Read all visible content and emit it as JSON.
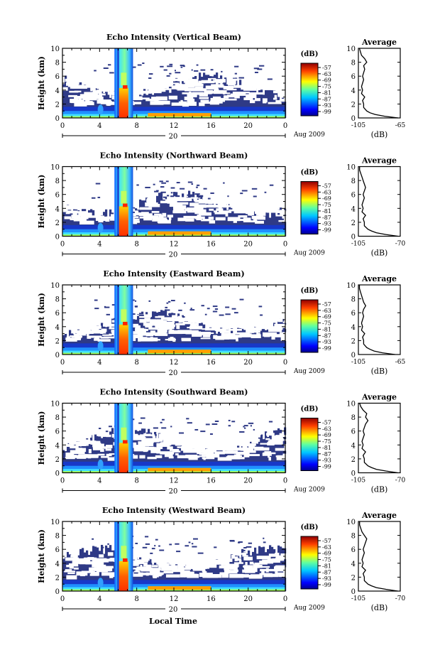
{
  "figure": {
    "xlabel": "Local Time",
    "ylabel": "Height (km)",
    "date_day": "20",
    "date_month_year": "Aug 2009",
    "colorbar_unit": "(dB)",
    "colorbar_ticks": [
      "-57",
      "-63",
      "-69",
      "-75",
      "-81",
      "-87",
      "-93",
      "-99"
    ],
    "colors": {
      "dark_blue": "#2f3a86",
      "colormap": [
        "#00008f",
        "#0040ff",
        "#00c0ff",
        "#40ffbf",
        "#c0ff40",
        "#ffc000",
        "#ff4000",
        "#800000"
      ]
    }
  },
  "chart_data": [
    {
      "type": "heatmap",
      "title": "Echo Intensity (Vertical Beam)",
      "x_ticks": [
        "0",
        "4",
        "8",
        "12",
        "16",
        "20",
        "0"
      ],
      "y_ticks": [
        "0",
        "2",
        "4",
        "6",
        "8",
        "10"
      ],
      "xlim": [
        0,
        24
      ],
      "ylim": [
        0,
        10
      ],
      "colorbar": {
        "unit": "(dB)",
        "range": [
          -99,
          -57
        ]
      },
      "average_profile": {
        "title": "Average",
        "xlabel": "(dB)",
        "x_ticks": [
          "-105",
          "-65"
        ],
        "xlim": [
          -105,
          -65
        ],
        "y_ticks": [
          "0",
          "2",
          "4",
          "6",
          "8",
          "10"
        ],
        "height": [
          0,
          0.25,
          0.5,
          0.75,
          1,
          1.5,
          2,
          2.5,
          3,
          3.5,
          4,
          4.5,
          5,
          5.5,
          6,
          6.5,
          7,
          7.5,
          8,
          8.5,
          9,
          9.5,
          10
        ],
        "db": [
          -67,
          -80,
          -89,
          -94,
          -97,
          -100,
          -100,
          -101,
          -99,
          -102,
          -101,
          -102,
          -101,
          -100,
          -101,
          -100,
          -99,
          -100,
          -97,
          -99,
          -102,
          -103,
          -104
        ]
      }
    },
    {
      "type": "heatmap",
      "title": "Echo Intensity (Northward Beam)",
      "x_ticks": [
        "0",
        "4",
        "8",
        "12",
        "16",
        "20",
        "0"
      ],
      "y_ticks": [
        "0",
        "2",
        "4",
        "6",
        "8",
        "10"
      ],
      "xlim": [
        0,
        24
      ],
      "ylim": [
        0,
        10
      ],
      "colorbar": {
        "unit": "(dB)",
        "range": [
          -99,
          -57
        ]
      },
      "average_profile": {
        "title": "Average",
        "xlabel": "(dB)",
        "x_ticks": [
          "-105",
          "-70"
        ],
        "xlim": [
          -105,
          -70
        ],
        "y_ticks": [
          "0",
          "2",
          "4",
          "6",
          "8",
          "10"
        ],
        "height": [
          0,
          0.25,
          0.5,
          0.75,
          1,
          1.5,
          2,
          2.5,
          3,
          3.5,
          4,
          4.5,
          5,
          5.5,
          6,
          6.5,
          7,
          7.5,
          8,
          8.5,
          9,
          9.5,
          10
        ],
        "db": [
          -72,
          -82,
          -90,
          -94,
          -97,
          -100,
          -100,
          -101,
          -99,
          -102,
          -101,
          -102,
          -101,
          -100,
          -101,
          -100,
          -99,
          -100,
          -101,
          -102,
          -103,
          -104,
          -104
        ]
      }
    },
    {
      "type": "heatmap",
      "title": "Echo Intensity (Eastward Beam)",
      "x_ticks": [
        "0",
        "4",
        "8",
        "12",
        "16",
        "20",
        "0"
      ],
      "y_ticks": [
        "0",
        "2",
        "4",
        "6",
        "8",
        "10"
      ],
      "xlim": [
        0,
        24
      ],
      "ylim": [
        0,
        10
      ],
      "colorbar": {
        "unit": "(dB)",
        "range": [
          -99,
          -57
        ]
      },
      "average_profile": {
        "title": "Average",
        "xlabel": "(dB)",
        "x_ticks": [
          "-105",
          "-65"
        ],
        "xlim": [
          -105,
          -65
        ],
        "y_ticks": [
          "0",
          "2",
          "4",
          "6",
          "8",
          "10"
        ],
        "height": [
          0,
          0.25,
          0.5,
          0.75,
          1,
          1.5,
          2,
          2.5,
          3,
          3.5,
          4,
          4.5,
          5,
          5.5,
          6,
          6.5,
          7,
          7.5,
          8,
          8.5,
          9,
          9.5,
          10
        ],
        "db": [
          -70,
          -82,
          -90,
          -94,
          -97,
          -100,
          -100,
          -101,
          -99,
          -102,
          -101,
          -102,
          -101,
          -100,
          -101,
          -100,
          -98,
          -100,
          -101,
          -102,
          -103,
          -104,
          -104
        ]
      }
    },
    {
      "type": "heatmap",
      "title": "Echo Intensity (Southward Beam)",
      "x_ticks": [
        "0",
        "4",
        "8",
        "12",
        "16",
        "20",
        "0"
      ],
      "y_ticks": [
        "0",
        "2",
        "4",
        "6",
        "8",
        "10"
      ],
      "xlim": [
        0,
        24
      ],
      "ylim": [
        0,
        10
      ],
      "colorbar": {
        "unit": "(dB)",
        "range": [
          -99,
          -57
        ]
      },
      "average_profile": {
        "title": "Average",
        "xlabel": "(dB)",
        "x_ticks": [
          "-105",
          "-70"
        ],
        "xlim": [
          -105,
          -70
        ],
        "y_ticks": [
          "0",
          "2",
          "4",
          "6",
          "8",
          "10"
        ],
        "height": [
          0,
          0.25,
          0.5,
          0.75,
          1,
          1.5,
          2,
          2.5,
          3,
          3.5,
          4,
          4.5,
          5,
          5.5,
          6,
          6.5,
          7,
          7.5,
          8,
          8.5,
          9,
          9.5,
          10
        ],
        "db": [
          -72,
          -82,
          -90,
          -94,
          -97,
          -100,
          -100,
          -101,
          -99,
          -102,
          -101,
          -102,
          -101,
          -100,
          -101,
          -100,
          -99,
          -97,
          -99,
          -98,
          -101,
          -103,
          -104
        ]
      }
    },
    {
      "type": "heatmap",
      "title": "Echo Intensity (Westward Beam)",
      "x_ticks": [
        "0",
        "4",
        "8",
        "12",
        "16",
        "20",
        "0"
      ],
      "y_ticks": [
        "0",
        "2",
        "4",
        "6",
        "8",
        "10"
      ],
      "xlim": [
        0,
        24
      ],
      "ylim": [
        0,
        10
      ],
      "colorbar": {
        "unit": "(dB)",
        "range": [
          -99,
          -57
        ]
      },
      "average_profile": {
        "title": "Average",
        "xlabel": "(dB)",
        "x_ticks": [
          "-105",
          "-70"
        ],
        "xlim": [
          -105,
          -70
        ],
        "y_ticks": [
          "0",
          "2",
          "4",
          "6",
          "8",
          "10"
        ],
        "height": [
          0,
          0.25,
          0.5,
          0.75,
          1,
          1.5,
          2,
          2.5,
          3,
          3.5,
          4,
          4.5,
          5,
          5.5,
          6,
          6.5,
          7,
          7.5,
          8,
          8.5,
          9,
          9.5,
          10
        ],
        "db": [
          -72,
          -82,
          -90,
          -94,
          -97,
          -100,
          -100,
          -101,
          -99,
          -102,
          -101,
          -102,
          -101,
          -100,
          -101,
          -100,
          -99,
          -98,
          -100,
          -102,
          -103,
          -104,
          -104
        ]
      }
    }
  ]
}
